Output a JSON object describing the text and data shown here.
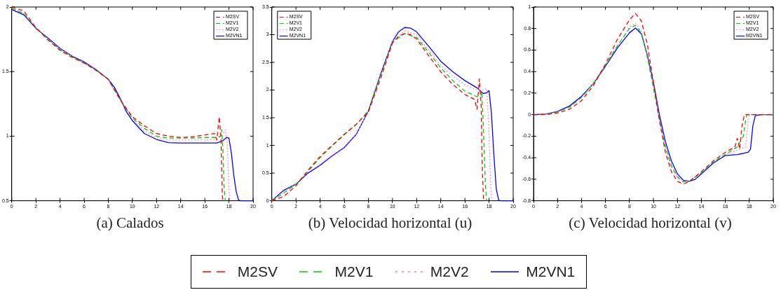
{
  "chart_data": [
    {
      "type": "line",
      "title": "(a) Calados",
      "xlim": [
        0,
        20
      ],
      "xticks": [
        0,
        2,
        4,
        6,
        8,
        10,
        12,
        14,
        16,
        18,
        20
      ],
      "ylim": [
        0.5,
        2
      ],
      "yticks": [
        0.5,
        1,
        1.5,
        2
      ],
      "grid": false,
      "legend": "top right",
      "marker": "none",
      "series": [
        {
          "name": "M2SV",
          "color": "#ff0000",
          "line_style": "dashed",
          "x": [
            0,
            1,
            2,
            3,
            4,
            5,
            6,
            7,
            8,
            9,
            10,
            11,
            12,
            13,
            14,
            15,
            16,
            16.8,
            17,
            17.2,
            17.35,
            17.45,
            17.5
          ],
          "values": [
            2.0,
            1.97,
            1.84,
            1.745,
            1.665,
            1.61,
            1.565,
            1.51,
            1.44,
            1.28,
            1.15,
            1.08,
            1.02,
            1.0,
            0.99,
            0.995,
            1.01,
            1.02,
            0.97,
            1.15,
            0.97,
            0.55,
            0.5
          ]
        },
        {
          "name": "M2V1",
          "color": "#00cc00",
          "line_style": "dashed",
          "x": [
            0,
            1,
            2,
            3,
            4,
            5,
            6,
            7,
            8,
            9,
            10,
            11,
            12,
            13,
            14,
            15,
            16,
            17,
            17.3,
            17.4,
            17.5,
            17.6,
            17.7
          ],
          "values": [
            1.99,
            1.95,
            1.84,
            1.75,
            1.67,
            1.615,
            1.567,
            1.51,
            1.44,
            1.28,
            1.14,
            1.06,
            1.0,
            0.985,
            0.985,
            0.985,
            0.99,
            0.99,
            1.0,
            1.05,
            0.9,
            0.6,
            0.5
          ]
        },
        {
          "name": "M2V2",
          "color": "#ff66ff",
          "line_style": "dotted",
          "x": [
            0,
            1,
            2,
            3,
            4,
            5,
            6,
            7,
            8,
            9,
            10,
            11,
            12,
            13,
            14,
            16,
            17,
            17.5,
            17.7,
            17.85,
            18,
            18.1
          ],
          "values": [
            1.99,
            1.95,
            1.84,
            1.755,
            1.675,
            1.618,
            1.57,
            1.512,
            1.44,
            1.28,
            1.13,
            1.04,
            0.99,
            0.97,
            0.97,
            0.97,
            0.975,
            1.02,
            1.05,
            0.95,
            0.6,
            0.5
          ]
        },
        {
          "name": "M2VN1",
          "color": "#0000ff",
          "line_style": "solid",
          "x": [
            0,
            1,
            2,
            3,
            4,
            5,
            6,
            7,
            8,
            8.5,
            9,
            9.5,
            10,
            11,
            12,
            13,
            14,
            15,
            16,
            17,
            17.5,
            17.8,
            18,
            18.2,
            18.4,
            18.6,
            18.8,
            19,
            20
          ],
          "values": [
            1.98,
            1.94,
            1.835,
            1.76,
            1.68,
            1.62,
            1.575,
            1.515,
            1.44,
            1.38,
            1.29,
            1.19,
            1.12,
            1.02,
            0.975,
            0.95,
            0.947,
            0.947,
            0.947,
            0.947,
            0.965,
            0.99,
            0.985,
            0.87,
            0.7,
            0.57,
            0.505,
            0.5,
            0.5
          ]
        }
      ]
    },
    {
      "type": "line",
      "title": "(b) Velocidad horizontal (u)",
      "xlim": [
        0,
        20
      ],
      "xticks": [
        0,
        2,
        4,
        6,
        8,
        10,
        12,
        14,
        16,
        18,
        20
      ],
      "ylim": [
        0,
        3.5
      ],
      "yticks": [
        0,
        0.5,
        1,
        1.5,
        2,
        2.5,
        3,
        3.5
      ],
      "grid": false,
      "legend": "top left",
      "marker": "none",
      "series": [
        {
          "name": "M2SV",
          "color": "#ff0000",
          "line_style": "dashed",
          "x": [
            0,
            1,
            2,
            3,
            4,
            5,
            6,
            7,
            8,
            9,
            10,
            10.5,
            11,
            11.5,
            12,
            13,
            14,
            15,
            16,
            16.8,
            17,
            17.2,
            17.35,
            17.45,
            17.55
          ],
          "values": [
            0,
            0.08,
            0.27,
            0.55,
            0.8,
            1.0,
            1.2,
            1.38,
            1.6,
            2.2,
            2.85,
            2.97,
            3.02,
            3.0,
            2.92,
            2.62,
            2.33,
            2.1,
            1.92,
            1.83,
            1.65,
            2.2,
            1.7,
            0.5,
            0
          ]
        },
        {
          "name": "M2V1",
          "color": "#00cc00",
          "line_style": "dashed",
          "x": [
            0,
            1,
            2,
            3,
            4,
            5,
            6,
            7,
            8,
            9,
            10,
            11,
            12,
            13,
            14,
            15,
            16,
            17,
            17.3,
            17.4,
            17.55,
            17.7,
            17.8
          ],
          "values": [
            0,
            0.14,
            0.3,
            0.53,
            0.78,
            0.99,
            1.19,
            1.38,
            1.63,
            2.25,
            2.86,
            3.02,
            2.95,
            2.68,
            2.4,
            2.17,
            1.98,
            1.88,
            1.9,
            1.98,
            1.2,
            0.3,
            0
          ]
        },
        {
          "name": "M2V2",
          "color": "#ff66ff",
          "line_style": "dotted",
          "x": [
            0,
            1,
            2,
            3,
            4,
            5,
            6,
            7,
            8,
            9,
            10,
            11,
            12,
            13,
            14,
            15,
            16,
            17,
            17.5,
            17.8,
            17.95,
            18.1,
            18.2
          ],
          "values": [
            0,
            0.17,
            0.3,
            0.51,
            0.66,
            0.82,
            0.97,
            1.2,
            1.62,
            2.27,
            2.88,
            3.07,
            3.0,
            2.72,
            2.45,
            2.25,
            2.1,
            2.0,
            2.0,
            2.03,
            1.5,
            0.5,
            0
          ]
        },
        {
          "name": "M2VN1",
          "color": "#0000ff",
          "line_style": "solid",
          "x": [
            0,
            1,
            2,
            3,
            4,
            5,
            6,
            7,
            8,
            9,
            10,
            10.5,
            11,
            11.5,
            12,
            13,
            14,
            15,
            16,
            17,
            17.5,
            17.8,
            18,
            18.2,
            18.4,
            18.6,
            18.8,
            19,
            20
          ],
          "values": [
            0,
            0.19,
            0.3,
            0.5,
            0.64,
            0.81,
            0.96,
            1.2,
            1.62,
            2.28,
            2.88,
            3.05,
            3.13,
            3.12,
            3.05,
            2.79,
            2.52,
            2.33,
            2.17,
            2.04,
            1.94,
            1.95,
            1.99,
            1.58,
            0.83,
            0.21,
            0.01,
            0,
            0
          ]
        }
      ]
    },
    {
      "type": "line",
      "title": "(c) Velocidad horizontal (v)",
      "xlim": [
        0,
        20
      ],
      "xticks": [
        0,
        2,
        4,
        6,
        8,
        10,
        12,
        14,
        16,
        18,
        20
      ],
      "ylim": [
        -0.8,
        1
      ],
      "yticks": [
        -0.8,
        -0.6,
        -0.4,
        -0.2,
        0,
        0.2,
        0.4,
        0.6,
        0.8,
        1
      ],
      "grid": false,
      "legend": "top right",
      "marker": "none",
      "series": [
        {
          "name": "M2SV",
          "color": "#ff0000",
          "line_style": "dashed",
          "x": [
            0,
            1,
            2,
            3,
            4,
            5,
            6,
            7,
            8,
            8.5,
            9,
            9.5,
            10,
            10.5,
            11,
            11.5,
            12,
            12.5,
            13,
            14,
            15,
            16,
            16.8,
            17,
            17.2,
            17.4,
            17.6,
            20
          ],
          "values": [
            0,
            0,
            0.015,
            0.05,
            0.13,
            0.27,
            0.47,
            0.7,
            0.88,
            0.94,
            0.87,
            0.65,
            0.3,
            -0.05,
            -0.35,
            -0.53,
            -0.62,
            -0.645,
            -0.62,
            -0.53,
            -0.43,
            -0.35,
            -0.3,
            -0.22,
            -0.32,
            -0.1,
            0,
            0
          ]
        },
        {
          "name": "M2V1",
          "color": "#00cc00",
          "line_style": "dashed",
          "x": [
            0,
            1,
            2,
            3,
            4,
            5,
            6,
            7,
            8,
            8.5,
            9,
            9.5,
            10,
            10.5,
            11,
            11.5,
            12,
            12.5,
            13,
            14,
            15,
            16,
            17,
            17.5,
            17.7,
            17.8,
            20
          ],
          "values": [
            0,
            0.005,
            0.025,
            0.07,
            0.16,
            0.29,
            0.46,
            0.64,
            0.8,
            0.83,
            0.76,
            0.53,
            0.25,
            -0.05,
            -0.3,
            -0.48,
            -0.58,
            -0.625,
            -0.62,
            -0.54,
            -0.44,
            -0.37,
            -0.3,
            -0.2,
            -0.05,
            0,
            0
          ]
        },
        {
          "name": "M2V2",
          "color": "#ff66ff",
          "line_style": "dotted",
          "x": [
            0,
            1,
            2,
            3,
            4,
            5,
            6,
            7,
            8,
            8.5,
            9,
            9.5,
            10,
            10.5,
            11,
            11.5,
            12,
            12.5,
            13,
            14,
            15,
            16,
            17,
            17.7,
            17.9,
            18,
            20
          ],
          "values": [
            0,
            0.005,
            0.025,
            0.07,
            0.16,
            0.29,
            0.46,
            0.64,
            0.81,
            0.85,
            0.77,
            0.54,
            0.27,
            -0.03,
            -0.28,
            -0.46,
            -0.57,
            -0.62,
            -0.62,
            -0.54,
            -0.44,
            -0.37,
            -0.33,
            -0.3,
            -0.05,
            0,
            0
          ]
        },
        {
          "name": "M2VN1",
          "color": "#0000ff",
          "line_style": "solid",
          "x": [
            0,
            1,
            2,
            3,
            4,
            5,
            6,
            7,
            8,
            8.5,
            9,
            9.5,
            10,
            10.5,
            11,
            11.5,
            12,
            12.5,
            13,
            13.5,
            14,
            15,
            16,
            17,
            17.5,
            17.9,
            18.1,
            18.3,
            18.5,
            19,
            20
          ],
          "values": [
            0,
            0.005,
            0.03,
            0.08,
            0.17,
            0.29,
            0.45,
            0.62,
            0.76,
            0.805,
            0.75,
            0.55,
            0.3,
            0,
            -0.25,
            -0.43,
            -0.55,
            -0.61,
            -0.62,
            -0.6,
            -0.55,
            -0.45,
            -0.38,
            -0.37,
            -0.36,
            -0.35,
            -0.32,
            -0.1,
            -0.01,
            0,
            0
          ]
        }
      ]
    }
  ]
}
